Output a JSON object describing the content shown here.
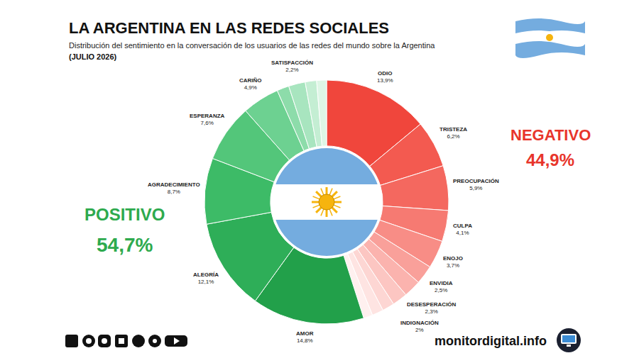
{
  "chart_data": {
    "type": "pie",
    "title": "LA ARGENTINA EN LAS REDES SOCIALES",
    "subtitle": "Distribución del sentimiento en la conversación de los usuarios de las redes del mundo sobre la Argentina",
    "date": "(JULIO 2026)",
    "categories": [
      "ODIO",
      "TRISTEZA",
      "PREOCUPACIÓN",
      "CULPA",
      "ENOJO",
      "ENVIDIA",
      "DESESPERACIÓN",
      "INDIGNACIÓN",
      null,
      null,
      null,
      "AMOR",
      "ALEGRÍA",
      "AGRADECIMIENTO",
      "ESPERANZA",
      "CARIÑO",
      null,
      "SATISFACCIÓN",
      null,
      null
    ],
    "values": [
      13.9,
      6.2,
      5.9,
      4.1,
      3.7,
      2.5,
      2.3,
      2,
      1.6,
      1.5,
      1.2,
      14.8,
      12.1,
      8.7,
      7.6,
      4.9,
      1.6,
      2.2,
      1.5,
      1.3
    ],
    "value_labels": [
      "13,9%",
      "6,2%",
      "5,9%",
      "4,1%",
      "3,7%",
      "2,5%",
      "2,3%",
      "2%",
      null,
      null,
      null,
      "14,8%",
      "12,1%",
      "8,7%",
      "7,6%",
      "4,9%",
      null,
      "2,2%",
      null,
      null
    ],
    "colors": [
      "#f0463c",
      "#f35a50",
      "#f4685f",
      "#f67a72",
      "#f88d86",
      "#f9a09a",
      "#fbb3ae",
      "#fcc6c2",
      "#fdd6d3",
      "#fee4e2",
      "#fff0ef",
      "#22a04a",
      "#2eae58",
      "#3dbb67",
      "#53c67a",
      "#6dd191",
      "#8ddcaa",
      "#a8e5bf",
      "#c4eed3",
      "#def6e6"
    ],
    "data_labels": true,
    "groups": [
      {
        "name": "POSITIVO",
        "value": 54.7,
        "value_label": "54,7%",
        "color": "#2eaa4e"
      },
      {
        "name": "NEGATIVO",
        "value": 44.9,
        "value_label": "44,9%",
        "color": "#e8352b"
      }
    ],
    "source": "monitordigital.info"
  }
}
